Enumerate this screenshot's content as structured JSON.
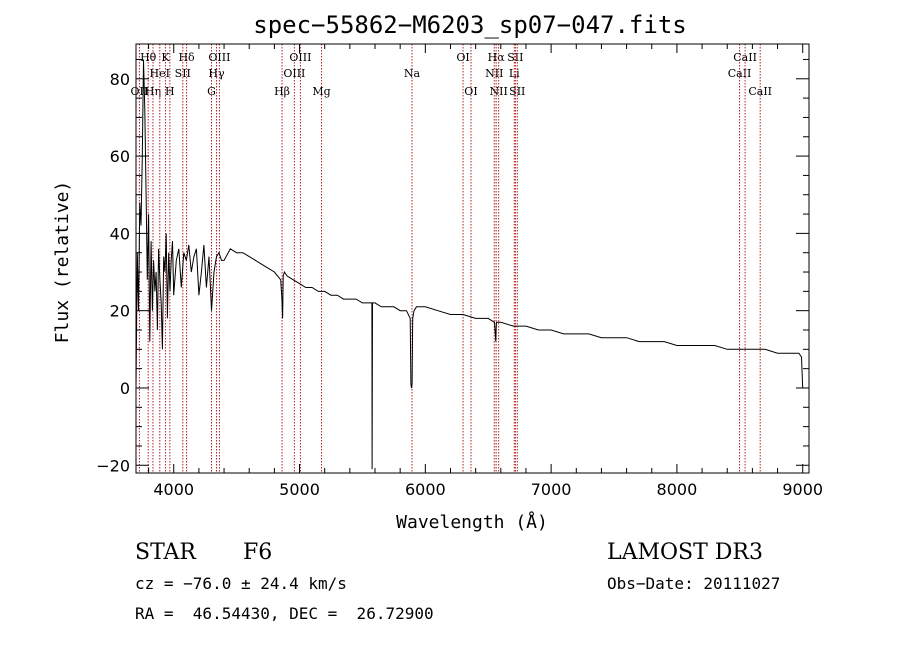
{
  "chart_data": {
    "type": "line",
    "title": "spec−55862−M6203_sp07−047.fits",
    "xlabel": "Wavelength (Å)",
    "ylabel": "Flux (relative)",
    "xlim": [
      3700,
      9050
    ],
    "ylim": [
      -22,
      89
    ],
    "x_ticks": [
      4000,
      5000,
      6000,
      7000,
      8000,
      9000
    ],
    "x_tick_labels": [
      "4000",
      "5000",
      "6000",
      "7000",
      "8000",
      "9000"
    ],
    "y_ticks": [
      -20,
      0,
      20,
      40,
      60,
      80
    ],
    "y_tick_labels": [
      "−20",
      "0",
      "20",
      "40",
      "60",
      "80"
    ],
    "x_minor_step": 200,
    "y_minor_step": 5,
    "line_color": "#000000",
    "marker_color": "#b22222",
    "series": [
      {
        "name": "flux",
        "x": [
          3700,
          3710,
          3720,
          3730,
          3740,
          3750,
          3760,
          3770,
          3780,
          3790,
          3800,
          3810,
          3820,
          3830,
          3840,
          3850,
          3860,
          3870,
          3880,
          3890,
          3900,
          3910,
          3920,
          3930,
          3940,
          3950,
          3960,
          3970,
          3980,
          3990,
          4000,
          4020,
          4040,
          4060,
          4080,
          4100,
          4120,
          4140,
          4160,
          4180,
          4200,
          4220,
          4240,
          4260,
          4280,
          4300,
          4320,
          4340,
          4360,
          4380,
          4400,
          4450,
          4500,
          4550,
          4600,
          4650,
          4700,
          4750,
          4800,
          4850,
          4860,
          4865,
          4870,
          4880,
          4900,
          4950,
          5000,
          5050,
          5100,
          5150,
          5200,
          5250,
          5300,
          5350,
          5400,
          5450,
          5500,
          5550,
          5575,
          5577,
          5580,
          5600,
          5650,
          5700,
          5750,
          5800,
          5850,
          5880,
          5885,
          5890,
          5895,
          5900,
          5910,
          5930,
          5950,
          6000,
          6100,
          6200,
          6300,
          6400,
          6500,
          6550,
          6560,
          6563,
          6566,
          6580,
          6600,
          6700,
          6800,
          6900,
          7000,
          7100,
          7200,
          7300,
          7400,
          7500,
          7600,
          7700,
          7800,
          7900,
          8000,
          8100,
          8200,
          8300,
          8400,
          8500,
          8600,
          8700,
          8800,
          8900,
          8950,
          8970,
          8990,
          8995,
          9000
        ],
        "values": [
          0,
          35,
          20,
          48,
          42,
          60,
          85,
          72,
          50,
          28,
          45,
          12,
          38,
          20,
          33,
          25,
          30,
          15,
          36,
          28,
          22,
          10,
          34,
          30,
          40,
          18,
          35,
          25,
          33,
          38,
          24,
          33,
          36,
          26,
          35,
          33,
          37,
          30,
          34,
          36,
          24,
          30,
          37,
          26,
          34,
          20,
          30,
          34,
          35,
          33,
          33,
          36,
          35,
          35,
          34,
          33,
          32,
          31,
          30,
          28,
          23,
          18,
          29,
          30,
          29,
          28,
          27,
          26,
          26,
          25,
          25,
          24,
          24,
          23,
          23,
          23,
          22,
          22,
          22,
          -21,
          22,
          22,
          21,
          21,
          21,
          20,
          20,
          18,
          1,
          0,
          1,
          18,
          20,
          21,
          21,
          21,
          20,
          19,
          19,
          18,
          18,
          17,
          12,
          15,
          17,
          17,
          17,
          16,
          16,
          15,
          15,
          14,
          14,
          14,
          13,
          13,
          13,
          12,
          12,
          12,
          11,
          11,
          11,
          11,
          10,
          10,
          10,
          10,
          9,
          9,
          9,
          9,
          8,
          4,
          0
        ]
      }
    ],
    "line_markers": [
      {
        "label": "OII",
        "x": 3727,
        "row": 3
      },
      {
        "label": "Hθ",
        "x": 3797,
        "row": 1
      },
      {
        "label": "Hη",
        "x": 3835,
        "row": 3
      },
      {
        "label": "HeI",
        "x": 3889,
        "row": 2
      },
      {
        "label": "K",
        "x": 3934,
        "row": 1
      },
      {
        "label": "H",
        "x": 3969,
        "row": 3
      },
      {
        "label": "SII",
        "x": 4072,
        "row": 2
      },
      {
        "label": "Hδ",
        "x": 4102,
        "row": 1
      },
      {
        "label": "G",
        "x": 4300,
        "row": 3
      },
      {
        "label": "Hγ",
        "x": 4340,
        "row": 2
      },
      {
        "label": "OIII",
        "x": 4363,
        "row": 1
      },
      {
        "label": "Hβ",
        "x": 4861,
        "row": 3
      },
      {
        "label": "OIII",
        "x": 4959,
        "row": 2
      },
      {
        "label": "OIII",
        "x": 5007,
        "row": 1
      },
      {
        "label": "Mg",
        "x": 5175,
        "row": 3
      },
      {
        "label": "Na",
        "x": 5894,
        "row": 2
      },
      {
        "label": "OI",
        "x": 6300,
        "row": 1
      },
      {
        "label": "OI",
        "x": 6363,
        "row": 3
      },
      {
        "label": "NII",
        "x": 6548,
        "row": 2
      },
      {
        "label": "Hα",
        "x": 6563,
        "row": 1
      },
      {
        "label": "NII",
        "x": 6583,
        "row": 3
      },
      {
        "label": "Li",
        "x": 6707,
        "row": 2
      },
      {
        "label": "SII",
        "x": 6716,
        "row": 1
      },
      {
        "label": "SII",
        "x": 6731,
        "row": 3
      },
      {
        "label": "CaII",
        "x": 8498,
        "row": 2
      },
      {
        "label": "CaII",
        "x": 8542,
        "row": 1
      },
      {
        "label": "CaII",
        "x": 8662,
        "row": 3
      }
    ]
  },
  "info": {
    "object_class": "STAR",
    "subclass": "F6",
    "survey": "LAMOST DR3",
    "redshift": "cz = −76.0 ± 24.4 km/s",
    "obs_date": "Obs−Date: 20111027",
    "coords": "RA =  46.54430, DEC =  26.72900"
  }
}
